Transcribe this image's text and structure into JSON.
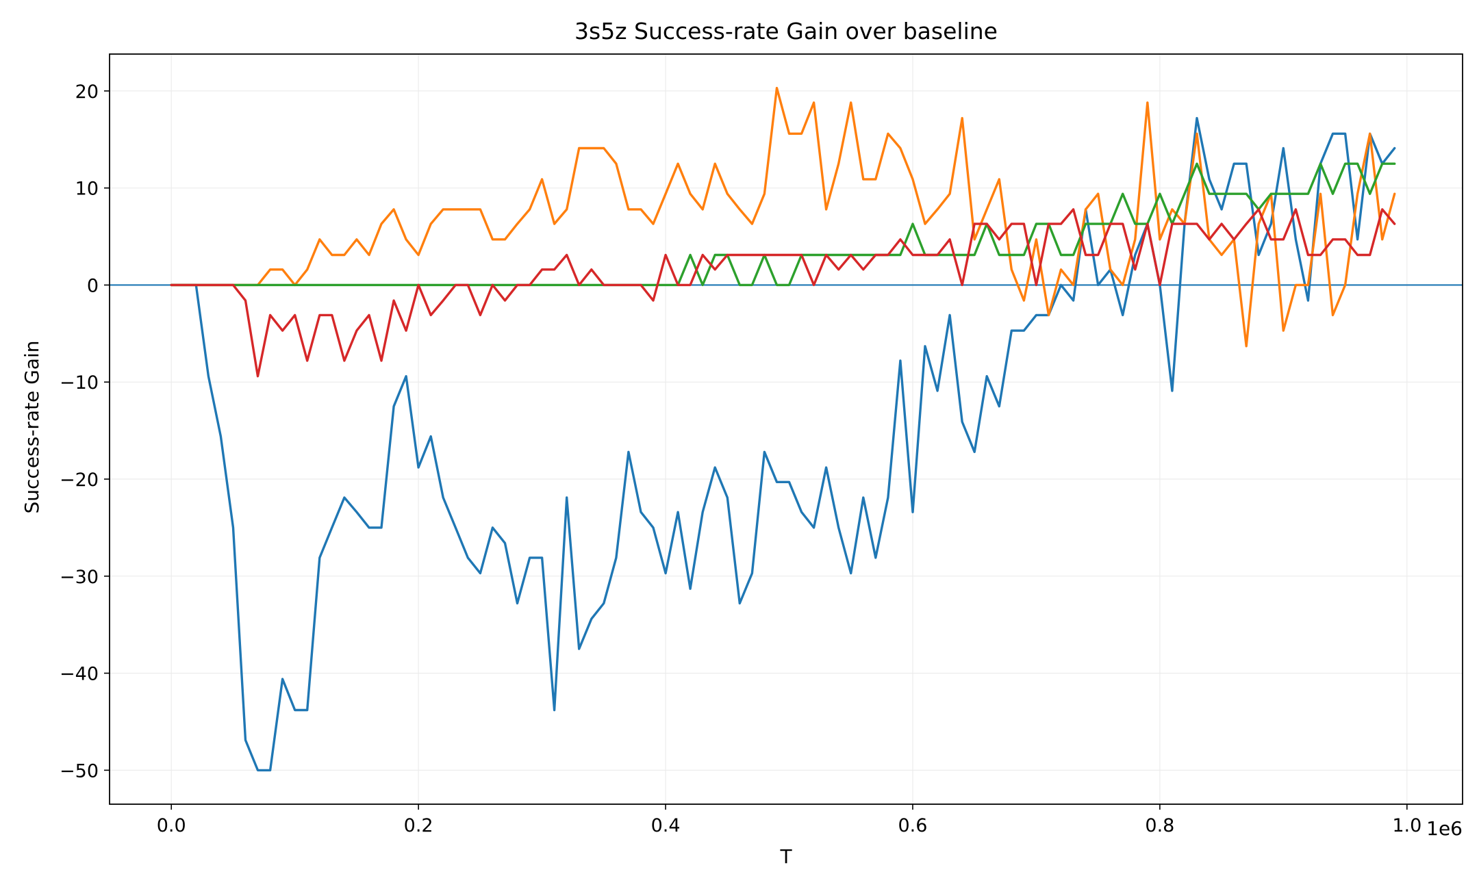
{
  "chart_data": {
    "type": "line",
    "title": "3s5z Success-rate Gain over baseline",
    "xlabel": "T",
    "ylabel": "Success-rate Gain",
    "x_offset_label": "1e6",
    "xlim": [
      -0.05,
      1.045
    ],
    "ylim": [
      -53.5,
      23.8
    ],
    "x_ticks": [
      0.0,
      0.2,
      0.4,
      0.6,
      0.8,
      1.0
    ],
    "x_tick_labels": [
      "0.0",
      "0.2",
      "0.4",
      "0.6",
      "0.8",
      "1.0"
    ],
    "y_ticks": [
      20,
      10,
      0,
      -10,
      -20,
      -30,
      -40,
      -50
    ],
    "y_tick_labels": [
      "20",
      "10",
      "0",
      "−10",
      "−20",
      "−30",
      "−40",
      "−50"
    ],
    "grid": true,
    "reference_line": {
      "y": 0,
      "color": "#1f77b4"
    },
    "x": [
      0.0,
      0.01,
      0.02,
      0.03,
      0.04,
      0.05,
      0.06,
      0.07,
      0.08,
      0.09,
      0.1,
      0.11,
      0.12,
      0.13,
      0.14,
      0.15,
      0.16,
      0.17,
      0.18,
      0.19,
      0.2,
      0.21,
      0.22,
      0.23,
      0.24,
      0.25,
      0.26,
      0.27,
      0.28,
      0.29,
      0.3,
      0.31,
      0.32,
      0.33,
      0.34,
      0.35,
      0.36,
      0.37,
      0.38,
      0.39,
      0.4,
      0.41,
      0.42,
      0.43,
      0.44,
      0.45,
      0.46,
      0.47,
      0.48,
      0.49,
      0.5,
      0.51,
      0.52,
      0.53,
      0.54,
      0.55,
      0.56,
      0.57,
      0.58,
      0.59,
      0.6,
      0.61,
      0.62,
      0.63,
      0.64,
      0.65,
      0.66,
      0.67,
      0.68,
      0.69,
      0.7,
      0.71,
      0.72,
      0.73,
      0.74,
      0.75,
      0.76,
      0.77,
      0.78,
      0.79,
      0.8,
      0.81,
      0.82,
      0.83,
      0.84,
      0.85,
      0.86,
      0.87,
      0.88,
      0.89,
      0.9,
      0.91,
      0.92,
      0.93,
      0.94,
      0.95,
      0.96,
      0.97,
      0.98,
      0.99
    ],
    "series": [
      {
        "color": "#1f77b4",
        "values": [
          0,
          0,
          0,
          -9.4,
          -15.6,
          -25,
          -46.9,
          -50,
          -50,
          -40.6,
          -43.8,
          -43.8,
          -28.1,
          -25,
          -21.9,
          -23.4,
          -25,
          -25,
          -12.5,
          -9.4,
          -18.8,
          -15.6,
          -21.9,
          -25,
          -28.1,
          -29.7,
          -25,
          -26.6,
          -32.8,
          -28.1,
          -28.1,
          -43.8,
          -21.9,
          -37.5,
          -34.4,
          -32.8,
          -28.1,
          -17.2,
          -23.4,
          -25,
          -29.7,
          -23.4,
          -31.3,
          -23.4,
          -18.8,
          -21.9,
          -32.8,
          -29.7,
          -17.2,
          -20.3,
          -20.3,
          -23.4,
          -25,
          -18.8,
          -25,
          -29.7,
          -21.9,
          -28.1,
          -21.9,
          -7.8,
          -23.4,
          -6.3,
          -10.9,
          -3.1,
          -14.1,
          -17.2,
          -9.4,
          -12.5,
          -4.7,
          -4.7,
          -3.1,
          -3.1,
          0,
          -1.6,
          7.8,
          0,
          1.6,
          -3.1,
          3.1,
          6.3,
          0,
          -10.9,
          6.3,
          17.2,
          10.9,
          7.8,
          12.5,
          12.5,
          3.1,
          6.3,
          14.1,
          4.7,
          -1.6,
          12.5,
          15.6,
          15.6,
          4.7,
          15.6,
          12.5,
          14.1
        ]
      },
      {
        "color": "#ff7f0e",
        "values": [
          0,
          0,
          0,
          0,
          0,
          0,
          0,
          0,
          1.6,
          1.6,
          0,
          1.6,
          4.7,
          3.1,
          3.1,
          4.7,
          3.1,
          6.3,
          7.8,
          4.7,
          3.1,
          6.3,
          7.8,
          7.8,
          7.8,
          7.8,
          4.7,
          4.7,
          6.3,
          7.8,
          10.9,
          6.3,
          7.8,
          14.1,
          14.1,
          14.1,
          12.5,
          7.8,
          7.8,
          6.3,
          9.4,
          12.5,
          9.4,
          7.8,
          12.5,
          9.4,
          7.8,
          6.3,
          9.4,
          20.3,
          15.6,
          15.6,
          18.8,
          7.8,
          12.5,
          18.8,
          10.9,
          10.9,
          15.6,
          14.1,
          10.9,
          6.3,
          7.8,
          9.4,
          17.2,
          4.7,
          7.8,
          10.9,
          1.6,
          -1.6,
          4.7,
          -3.1,
          1.6,
          0,
          7.8,
          9.4,
          1.6,
          0,
          4.7,
          18.8,
          4.7,
          7.8,
          6.3,
          15.6,
          4.7,
          3.1,
          4.7,
          -6.3,
          6.3,
          9.4,
          -4.7,
          0,
          0,
          9.4,
          -3.1,
          0,
          9.4,
          15.6,
          4.7,
          9.4
        ]
      },
      {
        "color": "#2ca02c",
        "values": [
          0,
          0,
          0,
          0,
          0,
          0,
          0,
          0,
          0,
          0,
          0,
          0,
          0,
          0,
          0,
          0,
          0,
          0,
          0,
          0,
          0,
          0,
          0,
          0,
          0,
          0,
          0,
          0,
          0,
          0,
          0,
          0,
          0,
          0,
          0,
          0,
          0,
          0,
          0,
          0,
          0,
          0,
          3.1,
          0,
          3.1,
          3.1,
          0,
          0,
          3.1,
          0,
          0,
          3.1,
          3.1,
          3.1,
          3.1,
          3.1,
          3.1,
          3.1,
          3.1,
          3.1,
          6.3,
          3.1,
          3.1,
          3.1,
          3.1,
          3.1,
          6.3,
          3.1,
          3.1,
          3.1,
          6.3,
          6.3,
          3.1,
          3.1,
          6.3,
          6.3,
          6.3,
          9.4,
          6.3,
          6.3,
          9.4,
          6.3,
          9.4,
          12.5,
          9.4,
          9.4,
          9.4,
          9.4,
          7.8,
          9.4,
          9.4,
          9.4,
          9.4,
          12.5,
          9.4,
          12.5,
          12.5,
          9.4,
          12.5,
          12.5
        ]
      },
      {
        "color": "#d62728",
        "values": [
          0,
          0,
          0,
          0,
          0,
          0,
          -1.6,
          -9.4,
          -3.1,
          -4.7,
          -3.1,
          -7.8,
          -3.1,
          -3.1,
          -7.8,
          -4.7,
          -3.1,
          -7.8,
          -1.6,
          -4.7,
          0,
          -3.1,
          -1.6,
          0,
          0,
          -3.1,
          0,
          -1.6,
          0,
          0,
          1.6,
          1.6,
          3.1,
          0,
          1.6,
          0,
          0,
          0,
          0,
          -1.6,
          3.1,
          0,
          0,
          3.1,
          1.6,
          3.1,
          3.1,
          3.1,
          3.1,
          3.1,
          3.1,
          3.1,
          0,
          3.1,
          1.6,
          3.1,
          1.6,
          3.1,
          3.1,
          4.7,
          3.1,
          3.1,
          3.1,
          4.7,
          0,
          6.3,
          6.3,
          4.7,
          6.3,
          6.3,
          0,
          6.3,
          6.3,
          7.8,
          3.1,
          3.1,
          6.3,
          6.3,
          1.6,
          6.3,
          0,
          6.3,
          6.3,
          6.3,
          4.7,
          6.3,
          4.7,
          6.3,
          7.8,
          4.7,
          4.7,
          7.8,
          3.1,
          3.1,
          4.7,
          4.7,
          3.1,
          3.1,
          7.8,
          6.3
        ]
      }
    ]
  }
}
